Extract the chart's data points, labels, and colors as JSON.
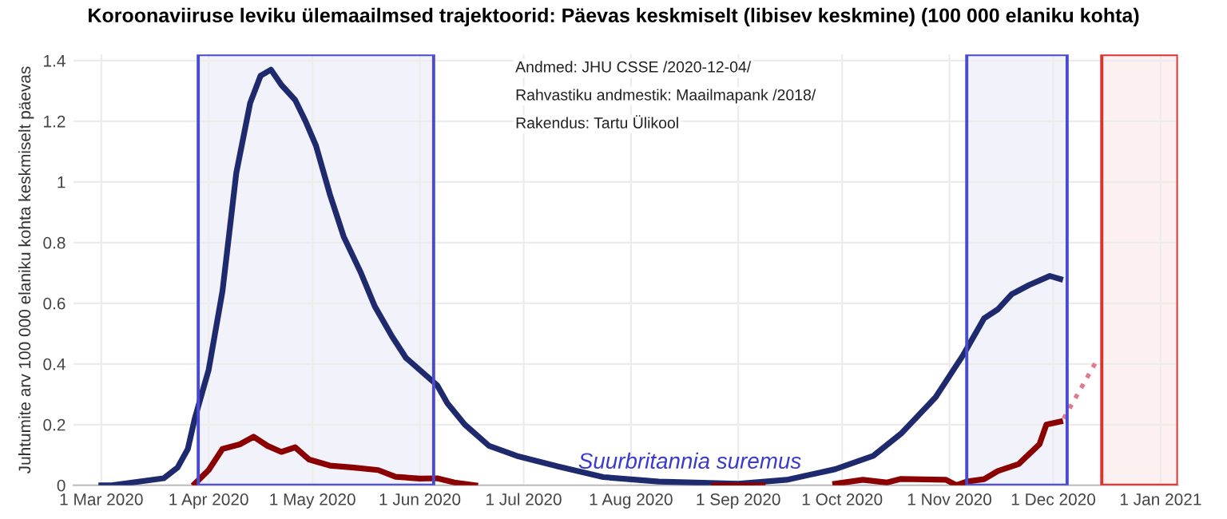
{
  "chart_data": {
    "type": "line",
    "title": "Koroonaviiruse leviku ülemaailmsed trajektoorid: Päevas keskmiselt (libisev keskmine) (100 000 elaniku kohta)",
    "ylabel": "Juhtumite arv 100 000 elaniku kohta keskmiselt päevas",
    "annotations": [
      "Andmed: JHU CSSE /2020-12-04/",
      "Rahvastiku andmestik: Maailmapank /2018/",
      "Rakendus: Tartu Ülikool",
      {
        "text": "Suurbritannia suremus",
        "x": "2020-08-18",
        "y": 0.04
      }
    ],
    "series": [
      {
        "color": "#1f2a6e",
        "x": [
          "2020-03-01",
          "2020-03-04",
          "2020-03-19",
          "2020-03-23",
          "2020-03-26",
          "2020-03-28",
          "2020-04-01",
          "2020-04-05",
          "2020-04-09",
          "2020-04-13",
          "2020-04-16",
          "2020-04-19",
          "2020-04-22",
          "2020-04-26",
          "2020-04-29",
          "2020-05-02",
          "2020-05-06",
          "2020-05-10",
          "2020-05-15",
          "2020-05-19",
          "2020-05-24",
          "2020-05-28",
          "2020-06-01",
          "2020-06-06",
          "2020-06-09",
          "2020-06-14",
          "2020-06-21",
          "2020-06-29",
          "2020-07-11",
          "2020-07-24",
          "2020-08-09",
          "2020-09-01",
          "2020-09-15",
          "2020-09-29",
          "2020-10-10",
          "2020-10-18",
          "2020-10-28",
          "2020-11-05",
          "2020-11-11",
          "2020-11-15",
          "2020-11-19",
          "2020-11-24",
          "2020-11-30",
          "2020-12-03"
        ],
        "values": [
          0,
          0,
          0.023,
          0.058,
          0.12,
          0.22,
          0.38,
          0.64,
          1.03,
          1.26,
          1.35,
          1.37,
          1.32,
          1.27,
          1.2,
          1.12,
          0.96,
          0.82,
          0.7,
          0.59,
          0.49,
          0.42,
          0.38,
          0.33,
          0.27,
          0.2,
          0.13,
          0.097,
          0.062,
          0.027,
          0.012,
          0.005,
          0.018,
          0.053,
          0.097,
          0.17,
          0.29,
          0.43,
          0.55,
          0.58,
          0.63,
          0.66,
          0.69,
          0.68
        ]
      },
      {
        "color": "#8b0000",
        "x": [
          "2020-03-28",
          "2020-04-01",
          "2020-04-05",
          "2020-04-10",
          "2020-04-14",
          "2020-04-18",
          "2020-04-22",
          "2020-04-26",
          "2020-04-30",
          "2020-05-06",
          "2020-05-13",
          "2020-05-20",
          "2020-05-25",
          "2020-06-01",
          "2020-06-06",
          "2020-06-11",
          "2020-06-17",
          "2020-07-01",
          "2020-08-25",
          "2020-09-08",
          "2020-09-20",
          "2020-09-29",
          "2020-10-07",
          "2020-10-14",
          "2020-10-18",
          "2020-10-31",
          "2020-11-03",
          "2020-11-06",
          "2020-11-11",
          "2020-11-15",
          "2020-11-21",
          "2020-11-27",
          "2020-11-29",
          "2020-12-03"
        ],
        "values": [
          0.005,
          0.05,
          0.12,
          0.135,
          0.16,
          0.13,
          0.11,
          0.125,
          0.085,
          0.065,
          0.058,
          0.05,
          0.028,
          0.022,
          0.023,
          0.009,
          0,
          null,
          0,
          0,
          null,
          0.005,
          0.018,
          0.009,
          0.021,
          0.018,
          0,
          0.012,
          0.02,
          0.047,
          0.07,
          0.135,
          0.2,
          0.21
        ]
      },
      {
        "color": "#e07a8c",
        "line_style": "dotted",
        "x": [
          "2020-12-04",
          "2020-12-14"
        ],
        "values": [
          0.22,
          0.42
        ]
      }
    ],
    "xlim": [
      "2020-02-22",
      "2021-01-06"
    ],
    "xticks": [
      {
        "value": "2020-03-01",
        "label": "1 Mar 2020"
      },
      {
        "value": "2020-04-01",
        "label": "1 Apr 2020"
      },
      {
        "value": "2020-05-01",
        "label": "1 May 2020"
      },
      {
        "value": "2020-06-01",
        "label": "1 Jun 2020"
      },
      {
        "value": "2020-07-01",
        "label": "1 Jul 2020"
      },
      {
        "value": "2020-08-01",
        "label": "1 Aug 2020"
      },
      {
        "value": "2020-09-01",
        "label": "1 Sep 2020"
      },
      {
        "value": "2020-10-01",
        "label": "1 Oct 2020"
      },
      {
        "value": "2020-11-01",
        "label": "1 Nov 2020"
      },
      {
        "value": "2020-12-01",
        "label": "1 Dec 2020"
      },
      {
        "value": "2021-01-01",
        "label": "1 Jan 2021"
      }
    ],
    "ylim": [
      0,
      1.42
    ],
    "yticks": [
      0,
      0.2,
      0.4,
      0.6,
      0.8,
      1,
      1.2,
      1.4
    ],
    "bands": [
      {
        "axis": "x",
        "from": "2020-03-29",
        "to": "2020-06-05",
        "color": "#4a4acc"
      },
      {
        "axis": "x",
        "from": "2020-11-06",
        "to": "2020-12-05",
        "color": "#4a4acc"
      },
      {
        "axis": "x",
        "from": "2020-12-15",
        "to": "2021-01-06",
        "color": "#e03030"
      }
    ],
    "grid": true,
    "marker": "none",
    "line_style": "solid"
  }
}
